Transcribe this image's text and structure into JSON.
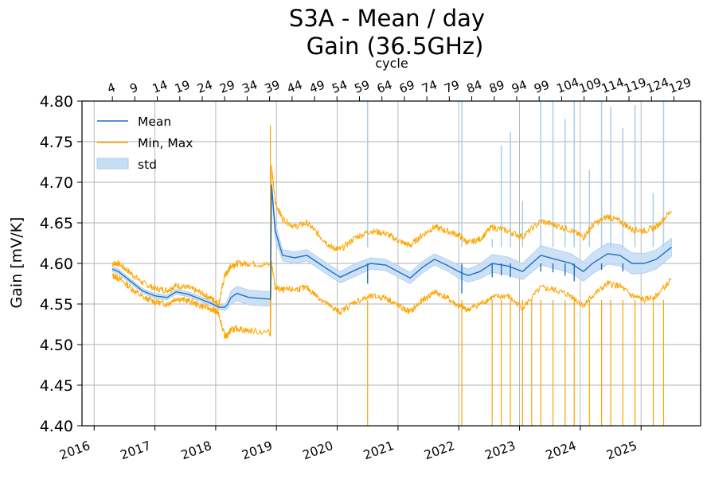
{
  "chart_data": {
    "type": "line",
    "title_line1": "S3A - Mean / day",
    "title_line2": "Gain (36.5GHz)",
    "ylabel": "Gain [mV/K]",
    "top_xlabel": "cycle",
    "ylim": [
      4.4,
      4.8
    ],
    "yticks": [
      "4.40",
      "4.45",
      "4.50",
      "4.55",
      "4.60",
      "4.65",
      "4.70",
      "4.75",
      "4.80"
    ],
    "xlim": [
      2015.8,
      2025.98
    ],
    "xticks": [
      "2016",
      "2017",
      "2018",
      "2019",
      "2020",
      "2021",
      "2022",
      "2023",
      "2024",
      "2025"
    ],
    "top_ticks": [
      "4",
      "9",
      "14",
      "19",
      "24",
      "29",
      "34",
      "39",
      "44",
      "49",
      "54",
      "59",
      "64",
      "69",
      "74",
      "79",
      "84",
      "89",
      "94",
      "99",
      "104",
      "109",
      "114",
      "119",
      "124",
      "129"
    ],
    "grid": true,
    "legend_position": "upper-left",
    "legend": [
      "Mean",
      "Min, Max",
      "std"
    ],
    "colors": {
      "mean": "#1f6fc6",
      "minmax": "#ffa500",
      "std": "#a9cdee"
    },
    "series": [
      {
        "name": "Mean",
        "x": [
          2016.3,
          2016.4,
          2016.6,
          2016.8,
          2017.0,
          2017.2,
          2017.35,
          2017.55,
          2017.75,
          2017.95,
          2018.05,
          2018.15,
          2018.2,
          2018.25,
          2018.35,
          2018.55,
          2018.9,
          2018.92,
          2018.98,
          2019.1,
          2019.3,
          2019.5,
          2019.7,
          2019.9,
          2020.05,
          2020.3,
          2020.55,
          2020.8,
          2021.0,
          2021.2,
          2021.4,
          2021.6,
          2021.8,
          2022.0,
          2022.15,
          2022.35,
          2022.55,
          2022.8,
          2023.05,
          2023.35,
          2023.6,
          2023.85,
          2024.05,
          2024.2,
          2024.45,
          2024.65,
          2024.85,
          2025.05,
          2025.25,
          2025.5
        ],
        "y": [
          4.593,
          4.59,
          4.578,
          4.566,
          4.56,
          4.558,
          4.565,
          4.562,
          4.556,
          4.55,
          4.546,
          4.546,
          4.55,
          4.558,
          4.563,
          4.558,
          4.556,
          4.697,
          4.64,
          4.61,
          4.607,
          4.61,
          4.6,
          4.59,
          4.583,
          4.592,
          4.6,
          4.598,
          4.59,
          4.582,
          4.595,
          4.605,
          4.598,
          4.59,
          4.585,
          4.59,
          4.6,
          4.597,
          4.59,
          4.61,
          4.605,
          4.6,
          4.59,
          4.6,
          4.612,
          4.61,
          4.6,
          4.6,
          4.605,
          4.62
        ]
      },
      {
        "name": "Min, Max",
        "x": [
          2016.3,
          2016.4,
          2016.6,
          2016.8,
          2017.0,
          2017.2,
          2017.35,
          2017.55,
          2017.75,
          2017.95,
          2018.05,
          2018.15,
          2018.2,
          2018.25,
          2018.35,
          2018.55,
          2018.9,
          2018.92,
          2018.98,
          2019.1,
          2019.3,
          2019.5,
          2019.7,
          2019.9,
          2020.05,
          2020.3,
          2020.55,
          2020.8,
          2021.0,
          2021.2,
          2021.4,
          2021.6,
          2021.8,
          2022.0,
          2022.15,
          2022.35,
          2022.55,
          2022.8,
          2023.05,
          2023.35,
          2023.6,
          2023.85,
          2024.05,
          2024.2,
          2024.45,
          2024.65,
          2024.85,
          2025.05,
          2025.25,
          2025.5
        ],
        "max": [
          4.6,
          4.6,
          4.588,
          4.576,
          4.569,
          4.567,
          4.573,
          4.57,
          4.564,
          4.556,
          4.55,
          4.585,
          4.59,
          4.597,
          4.6,
          4.6,
          4.598,
          4.72,
          4.675,
          4.655,
          4.645,
          4.65,
          4.635,
          4.62,
          4.617,
          4.632,
          4.64,
          4.637,
          4.628,
          4.622,
          4.635,
          4.645,
          4.64,
          4.635,
          4.625,
          4.63,
          4.645,
          4.64,
          4.633,
          4.652,
          4.647,
          4.641,
          4.632,
          4.647,
          4.658,
          4.652,
          4.642,
          4.64,
          4.645,
          4.665
        ],
        "min": [
          4.585,
          4.582,
          4.57,
          4.558,
          4.553,
          4.55,
          4.557,
          4.554,
          4.548,
          4.543,
          4.538,
          4.51,
          4.512,
          4.518,
          4.52,
          4.517,
          4.515,
          4.6,
          4.57,
          4.567,
          4.568,
          4.57,
          4.558,
          4.546,
          4.54,
          4.553,
          4.559,
          4.558,
          4.548,
          4.54,
          4.554,
          4.565,
          4.558,
          4.547,
          4.543,
          4.55,
          4.558,
          4.56,
          4.545,
          4.57,
          4.567,
          4.56,
          4.548,
          4.56,
          4.575,
          4.572,
          4.56,
          4.555,
          4.56,
          4.58
        ]
      },
      {
        "name": "std",
        "x": [
          2016.3,
          2016.4,
          2016.6,
          2016.8,
          2017.0,
          2017.2,
          2017.35,
          2017.55,
          2017.75,
          2017.95,
          2018.05,
          2018.15,
          2018.2,
          2018.25,
          2018.35,
          2018.55,
          2018.9,
          2018.92,
          2018.98,
          2019.1,
          2019.3,
          2019.5,
          2019.7,
          2019.9,
          2020.05,
          2020.3,
          2020.55,
          2020.8,
          2021.0,
          2021.2,
          2021.4,
          2021.6,
          2021.8,
          2022.0,
          2022.15,
          2022.35,
          2022.55,
          2022.8,
          2023.05,
          2023.35,
          2023.6,
          2023.85,
          2024.05,
          2024.2,
          2024.45,
          2024.65,
          2024.85,
          2025.05,
          2025.25,
          2025.5
        ],
        "upper": [
          4.596,
          4.593,
          4.581,
          4.569,
          4.563,
          4.561,
          4.568,
          4.565,
          4.559,
          4.553,
          4.549,
          4.55,
          4.555,
          4.566,
          4.572,
          4.567,
          4.565,
          4.7,
          4.65,
          4.617,
          4.614,
          4.617,
          4.607,
          4.597,
          4.59,
          4.6,
          4.607,
          4.605,
          4.597,
          4.589,
          4.602,
          4.612,
          4.605,
          4.598,
          4.593,
          4.599,
          4.611,
          4.608,
          4.6,
          4.622,
          4.617,
          4.612,
          4.602,
          4.613,
          4.625,
          4.623,
          4.613,
          4.612,
          4.617,
          4.631
        ]
      }
    ],
    "std_lower": [
      4.59,
      4.587,
      4.575,
      4.563,
      4.557,
      4.555,
      4.562,
      4.559,
      4.553,
      4.547,
      4.543,
      4.542,
      4.545,
      4.55,
      4.554,
      4.549,
      4.547,
      4.694,
      4.63,
      4.603,
      4.6,
      4.603,
      4.593,
      4.583,
      4.576,
      4.584,
      4.593,
      4.591,
      4.583,
      4.575,
      4.588,
      4.598,
      4.591,
      4.582,
      4.577,
      4.581,
      4.589,
      4.586,
      4.58,
      4.598,
      4.593,
      4.588,
      4.578,
      4.587,
      4.599,
      4.597,
      4.587,
      4.588,
      4.593,
      4.609
    ],
    "max_spikes_x": [
      2020.5,
      2022.05,
      2022.55,
      2022.7,
      2022.85,
      2023.05,
      2023.35,
      2023.55,
      2023.75,
      2023.9,
      2024.15,
      2024.35,
      2024.5,
      2024.7,
      2024.9,
      2025.2,
      2025.37
    ],
    "max_spikes_y": [
      4.8,
      4.8,
      4.63,
      4.745,
      4.762,
      4.677,
      4.8,
      4.8,
      4.778,
      4.8,
      4.715,
      4.8,
      4.793,
      4.767,
      4.795,
      4.687,
      4.8
    ],
    "min_spikes_x": [
      2020.5,
      2022.05,
      2022.55,
      2022.7,
      2022.85,
      2023.05,
      2023.2,
      2023.35,
      2023.55,
      2023.75,
      2023.9,
      2024.15,
      2024.35,
      2024.5,
      2024.7,
      2024.9,
      2025.2,
      2025.37
    ],
    "min_spikes_y": [
      4.4,
      4.4,
      4.4,
      4.4,
      4.4,
      4.4,
      4.4,
      4.4,
      4.4,
      4.4,
      4.4,
      4.4,
      4.4,
      4.4,
      4.4,
      4.4,
      4.4,
      4.4
    ],
    "mean_dips_x": [
      2020.5,
      2022.05,
      2022.55,
      2022.7,
      2022.85,
      2023.35,
      2023.55,
      2023.75,
      2023.9,
      2024.35,
      2024.7
    ],
    "mean_dips_y": [
      4.575,
      4.563,
      4.583,
      4.585,
      4.583,
      4.59,
      4.589,
      4.585,
      4.578,
      4.592,
      4.59
    ]
  }
}
